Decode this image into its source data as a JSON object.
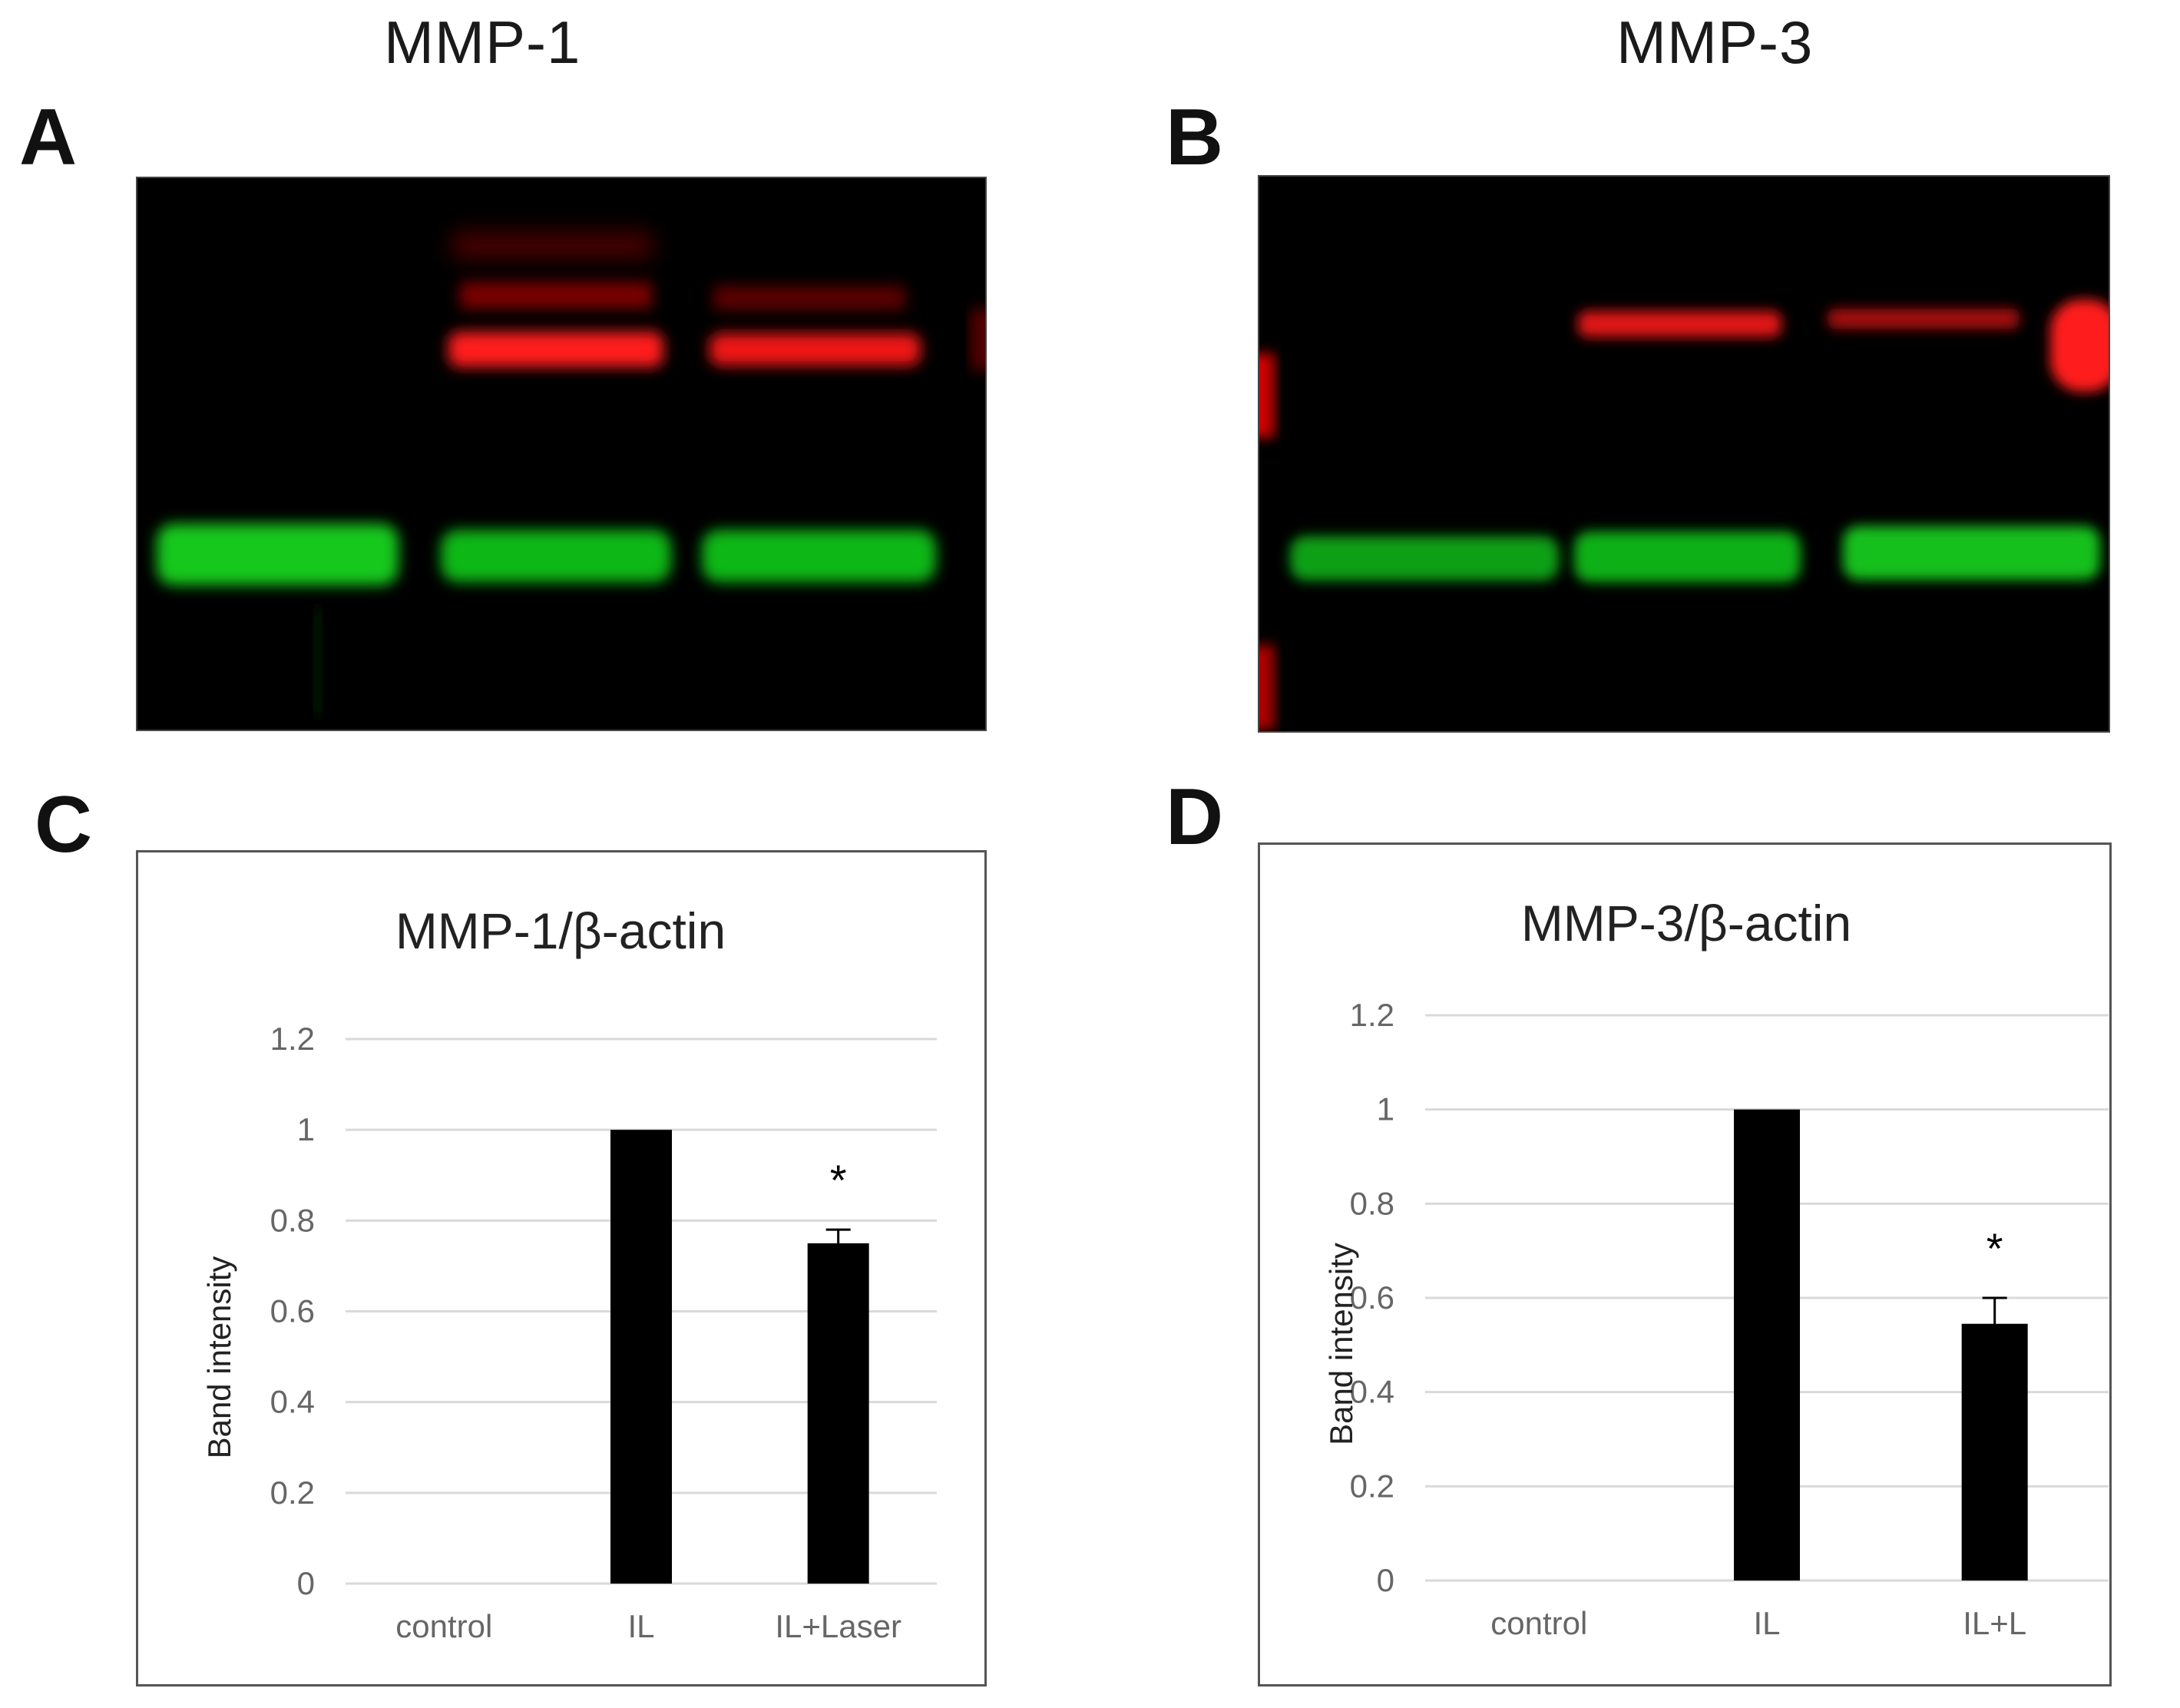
{
  "figure": {
    "titles": {
      "left": "MMP-1",
      "right": "MMP-3"
    },
    "panels": {
      "a": "A",
      "b": "B",
      "c": "C",
      "d": "D"
    },
    "blots": [
      {
        "panel": "A",
        "lanes": 3,
        "red_bands": [
          false,
          true,
          true
        ],
        "green_bands": [
          true,
          true,
          true
        ]
      },
      {
        "panel": "B",
        "lanes": 3,
        "red_bands": [
          false,
          true,
          true
        ],
        "green_bands": [
          true,
          true,
          true
        ]
      }
    ]
  },
  "chart_data": [
    {
      "panel": "C",
      "type": "bar",
      "title": "MMP-1/β-actin",
      "ylabel": "Band intensity",
      "xlabel": "",
      "categories": [
        "control",
        "IL",
        "IL+Laser"
      ],
      "values": [
        0,
        1.0,
        0.75
      ],
      "errors": [
        0,
        0,
        0.03
      ],
      "significance": [
        "",
        "",
        "*"
      ],
      "ylim": [
        0,
        1.2
      ],
      "yticks": [
        "0",
        "0.2",
        "0.4",
        "0.6",
        "0.8",
        "1",
        "1.2"
      ],
      "grid": true,
      "bar_color": "#000000"
    },
    {
      "panel": "D",
      "type": "bar",
      "title": "MMP-3/β-actin",
      "ylabel": "Band intensity",
      "xlabel": "",
      "categories": [
        "control",
        "IL",
        "IL+L"
      ],
      "values": [
        0,
        1.0,
        0.545
      ],
      "errors": [
        0,
        0,
        0.055
      ],
      "significance": [
        "",
        "",
        "*"
      ],
      "ylim": [
        0,
        1.2
      ],
      "yticks": [
        "0",
        "0.2",
        "0.4",
        "0.6",
        "0.8",
        "1",
        "1.2"
      ],
      "grid": true,
      "bar_color": "#000000"
    }
  ]
}
